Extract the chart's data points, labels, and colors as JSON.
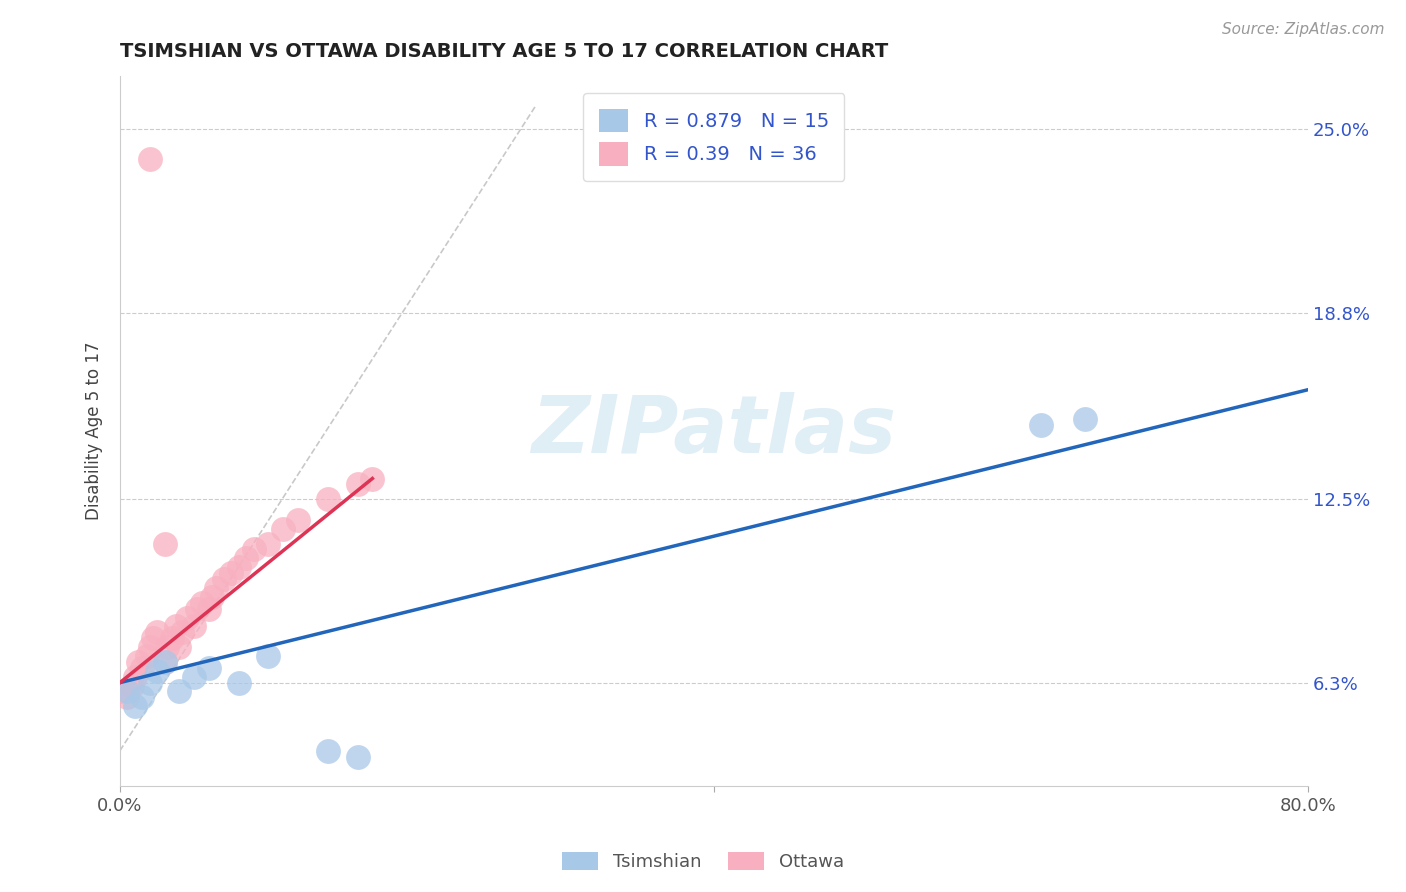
{
  "title": "TSIMSHIAN VS OTTAWA DISABILITY AGE 5 TO 17 CORRELATION CHART",
  "source_text": "Source: ZipAtlas.com",
  "ylabel": "Disability Age 5 to 17",
  "xlim": [
    0.0,
    0.8
  ],
  "ylim": [
    0.028,
    0.268
  ],
  "ytick_positions": [
    0.063,
    0.125,
    0.188,
    0.25
  ],
  "ytick_labels": [
    "6.3%",
    "12.5%",
    "18.8%",
    "25.0%"
  ],
  "grid_color": "#cccccc",
  "background_color": "#ffffff",
  "tsimshian_color": "#a8c8e8",
  "ottawa_color": "#f8b0c0",
  "tsimshian_line_color": "#2266bb",
  "ottawa_line_color": "#dd3355",
  "tsimshian_R": 0.879,
  "tsimshian_N": 15,
  "ottawa_R": 0.39,
  "ottawa_N": 36,
  "legend_color": "#3355cc",
  "watermark_text": "ZIPatlas",
  "tsimshian_x": [
    0.005,
    0.01,
    0.015,
    0.02,
    0.025,
    0.03,
    0.04,
    0.05,
    0.06,
    0.08,
    0.1,
    0.14,
    0.16,
    0.62,
    0.65
  ],
  "tsimshian_y": [
    0.06,
    0.055,
    0.058,
    0.063,
    0.067,
    0.07,
    0.06,
    0.065,
    0.068,
    0.063,
    0.072,
    0.04,
    0.038,
    0.15,
    0.152
  ],
  "ottawa_x": [
    0.0,
    0.005,
    0.008,
    0.01,
    0.012,
    0.015,
    0.018,
    0.02,
    0.022,
    0.025,
    0.03,
    0.032,
    0.035,
    0.038,
    0.04,
    0.042,
    0.045,
    0.05,
    0.052,
    0.055,
    0.06,
    0.062,
    0.065,
    0.07,
    0.075,
    0.08,
    0.085,
    0.09,
    0.1,
    0.11,
    0.12,
    0.14,
    0.16,
    0.17,
    0.02,
    0.03
  ],
  "ottawa_y": [
    0.06,
    0.058,
    0.062,
    0.065,
    0.07,
    0.068,
    0.072,
    0.075,
    0.078,
    0.08,
    0.07,
    0.075,
    0.078,
    0.082,
    0.075,
    0.08,
    0.085,
    0.082,
    0.088,
    0.09,
    0.088,
    0.092,
    0.095,
    0.098,
    0.1,
    0.102,
    0.105,
    0.108,
    0.11,
    0.115,
    0.118,
    0.125,
    0.13,
    0.132,
    0.24,
    0.11
  ],
  "ref_line_x": [
    0.0,
    0.28
  ],
  "ref_line_y": [
    0.04,
    0.258
  ],
  "blue_line_x0": 0.0,
  "blue_line_y0": 0.063,
  "blue_line_x1": 0.8,
  "blue_line_y1": 0.162,
  "pink_line_x0": 0.0,
  "pink_line_y0": 0.063,
  "pink_line_x1": 0.17,
  "pink_line_y1": 0.132
}
